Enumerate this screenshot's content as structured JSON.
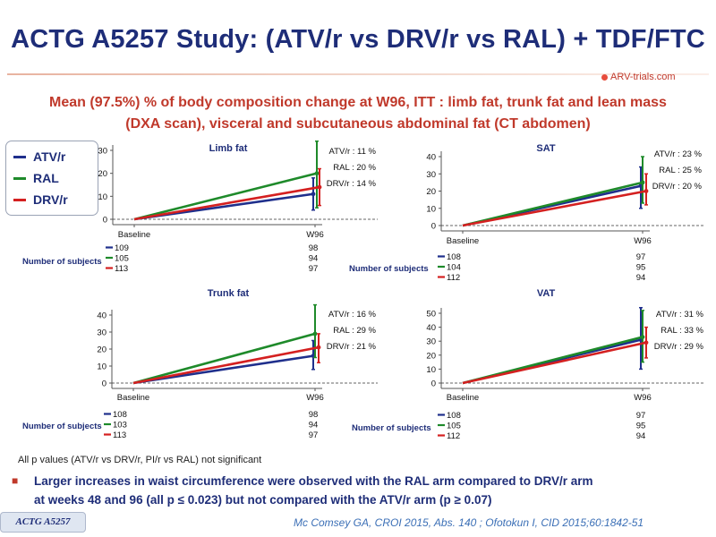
{
  "title": "ACTG A5257 Study: (ATV/r vs DRV/r vs RAL) + TDF/FTC",
  "logo_text": "ARV-trials.com",
  "subtitle_line1": "Mean (97.5%) % of body composition change at W96, ITT : limb fat, trunk fat and lean mass",
  "subtitle_line2": "(DXA scan), visceral and subcutaneous abdominal fat (CT abdomen)",
  "legend": [
    {
      "label": "ATV/r",
      "color": "#1f2f8c"
    },
    {
      "label": "RAL",
      "color": "#1e8a2a"
    },
    {
      "label": "DRV/r",
      "color": "#d42020"
    }
  ],
  "colors": {
    "ATV/r": "#1f2f8c",
    "RAL": "#1e8a2a",
    "DRV/r": "#d42020"
  },
  "subjects_label": "Number of subjects",
  "note": "All p values (ATV/r vs DRV/r, PI/r vs RAL) not significant",
  "bullet_line1": "Larger increases in waist circumference were observed with the RAL arm compared to DRV/r arm",
  "bullet_line2": "at weeks 48 and 96 (all p ≤ 0.023) but not compared with the ATV/r arm (p ≥ 0.07)",
  "footer_tag": "ACTG A5257",
  "citation": "Mc Comsey GA, CROI 2015, Abs. 140 ; Ofotokun I, CID 2015;60:1842-51",
  "chart_data": [
    {
      "type": "line",
      "title": "Limb fat",
      "categories": [
        "Baseline",
        "W96"
      ],
      "ylim": [
        0,
        30
      ],
      "yticks": [
        0,
        10,
        20,
        30
      ],
      "series": [
        {
          "name": "ATV/r",
          "values": [
            0,
            11
          ],
          "ci": [
            4,
            18
          ],
          "label": "ATV/r : 11 %",
          "n": [
            109,
            98
          ]
        },
        {
          "name": "RAL",
          "values": [
            0,
            20
          ],
          "ci": [
            5,
            34
          ],
          "label": "RAL : 20 %",
          "n": [
            105,
            94
          ]
        },
        {
          "name": "DRV/r",
          "values": [
            0,
            14
          ],
          "ci": [
            6,
            22
          ],
          "label": "DRV/r : 14 %",
          "n": [
            113,
            97
          ]
        }
      ]
    },
    {
      "type": "line",
      "title": "SAT",
      "categories": [
        "Baseline",
        "W96"
      ],
      "ylim": [
        0,
        40
      ],
      "yticks": [
        0,
        10,
        20,
        30,
        40
      ],
      "series": [
        {
          "name": "ATV/r",
          "values": [
            0,
            23
          ],
          "ci": [
            10,
            34
          ],
          "label": "ATV/r : 23 %",
          "n": [
            108,
            97
          ]
        },
        {
          "name": "RAL",
          "values": [
            0,
            25
          ],
          "ci": [
            13,
            40
          ],
          "label": "RAL : 25 %",
          "n": [
            104,
            95
          ]
        },
        {
          "name": "DRV/r",
          "values": [
            0,
            20
          ],
          "ci": [
            12,
            30
          ],
          "label": "DRV/r : 20 %",
          "n": [
            112,
            94
          ]
        }
      ]
    },
    {
      "type": "line",
      "title": "Trunk fat",
      "categories": [
        "Baseline",
        "W96"
      ],
      "ylim": [
        0,
        40
      ],
      "yticks": [
        0,
        10,
        20,
        30,
        40
      ],
      "series": [
        {
          "name": "ATV/r",
          "values": [
            0,
            16
          ],
          "ci": [
            8,
            25
          ],
          "label": "ATV/r : 16 %",
          "n": [
            108,
            98
          ]
        },
        {
          "name": "RAL",
          "values": [
            0,
            29
          ],
          "ci": [
            15,
            46
          ],
          "label": "RAL : 29 %",
          "n": [
            103,
            94
          ]
        },
        {
          "name": "DRV/r",
          "values": [
            0,
            21
          ],
          "ci": [
            12,
            29
          ],
          "label": "DRV/r : 21 %",
          "n": [
            113,
            97
          ]
        }
      ]
    },
    {
      "type": "line",
      "title": "VAT",
      "categories": [
        "Baseline",
        "W96"
      ],
      "ylim": [
        0,
        50
      ],
      "yticks": [
        0,
        10,
        20,
        30,
        40,
        50
      ],
      "series": [
        {
          "name": "ATV/r",
          "values": [
            0,
            31
          ],
          "ci": [
            10,
            54
          ],
          "label": "ATV/r : 31 %",
          "n": [
            108,
            97
          ]
        },
        {
          "name": "RAL",
          "values": [
            0,
            33
          ],
          "ci": [
            15,
            52
          ],
          "label": "RAL : 33 %",
          "n": [
            105,
            95
          ]
        },
        {
          "name": "DRV/r",
          "values": [
            0,
            29
          ],
          "ci": [
            18,
            40
          ],
          "label": "DRV/r : 29 %",
          "n": [
            112,
            94
          ]
        }
      ]
    }
  ]
}
